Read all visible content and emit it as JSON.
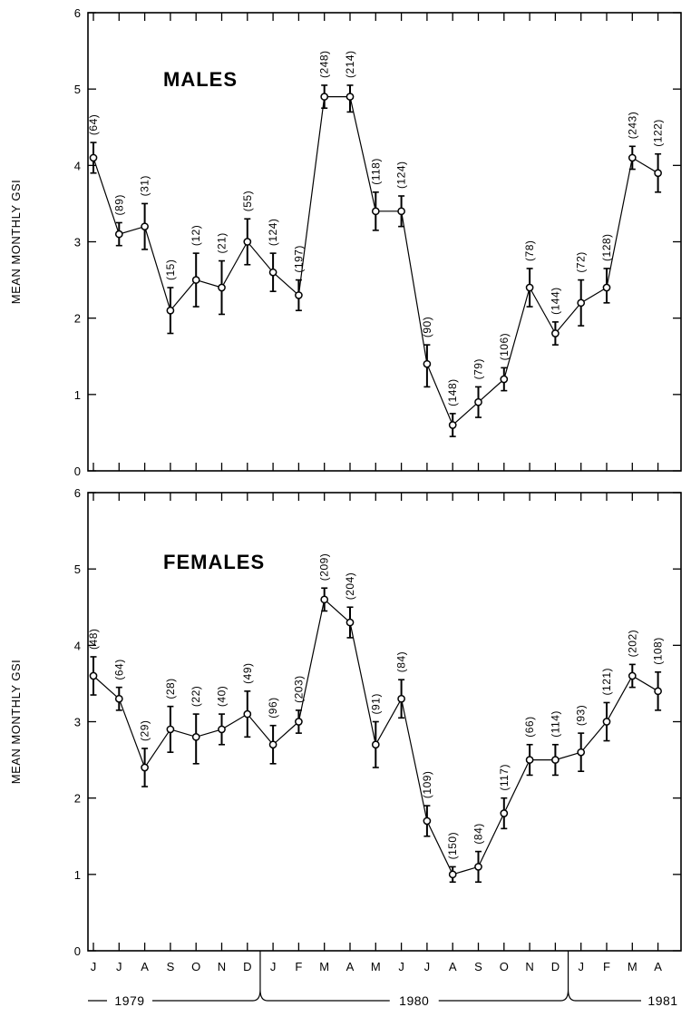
{
  "chart_data": [
    {
      "type": "line",
      "title": "MALES",
      "ylabel": "MEAN MONTHLY GSI",
      "xlabel": "",
      "ylim": [
        0,
        6
      ],
      "yticks": [
        "0",
        "1",
        "2",
        "3",
        "4",
        "5",
        "6"
      ],
      "grid": false,
      "categories": [
        "J",
        "J",
        "A",
        "S",
        "O",
        "N",
        "D",
        "J",
        "F",
        "M",
        "A",
        "M",
        "J",
        "J",
        "A",
        "S",
        "O",
        "N",
        "D",
        "J",
        "F",
        "M",
        "A"
      ],
      "values": [
        4.1,
        3.1,
        3.2,
        2.1,
        2.5,
        2.4,
        3.0,
        2.6,
        2.3,
        4.9,
        4.9,
        3.4,
        3.4,
        1.4,
        0.6,
        0.9,
        1.2,
        2.4,
        1.8,
        2.2,
        2.4,
        4.1,
        3.9
      ],
      "err_low": [
        3.9,
        2.95,
        2.9,
        1.8,
        2.15,
        2.05,
        2.7,
        2.35,
        2.1,
        4.75,
        4.7,
        3.15,
        3.2,
        1.1,
        0.45,
        0.7,
        1.05,
        2.15,
        1.65,
        1.9,
        2.2,
        3.95,
        3.65
      ],
      "err_high": [
        4.3,
        3.25,
        3.5,
        2.4,
        2.85,
        2.75,
        3.3,
        2.85,
        2.5,
        5.05,
        5.05,
        3.65,
        3.6,
        1.65,
        0.75,
        1.1,
        1.35,
        2.65,
        1.95,
        2.5,
        2.65,
        4.25,
        4.15
      ],
      "n_labels": [
        "(64)",
        "(89)",
        "(31)",
        "(15)",
        "(12)",
        "(21)",
        "(55)",
        "(124)",
        "(197)",
        "(248)",
        "(214)",
        "(118)",
        "(124)",
        "(90)",
        "(148)",
        "(79)",
        "(106)",
        "(78)",
        "(144)",
        "(72)",
        "(128)",
        "(243)",
        "(122)"
      ]
    },
    {
      "type": "line",
      "title": "FEMALES",
      "ylabel": "MEAN MONTHLY GSI",
      "xlabel": "",
      "ylim": [
        0,
        6
      ],
      "yticks": [
        "0",
        "1",
        "2",
        "3",
        "4",
        "5",
        "6"
      ],
      "grid": false,
      "categories": [
        "J",
        "J",
        "A",
        "S",
        "O",
        "N",
        "D",
        "J",
        "F",
        "M",
        "A",
        "M",
        "J",
        "J",
        "A",
        "S",
        "O",
        "N",
        "D",
        "J",
        "F",
        "M",
        "A"
      ],
      "values": [
        3.6,
        3.3,
        2.4,
        2.9,
        2.8,
        2.9,
        3.1,
        2.7,
        3.0,
        4.6,
        4.3,
        2.7,
        3.3,
        1.7,
        1.0,
        1.1,
        1.8,
        2.5,
        2.5,
        2.6,
        3.0,
        3.6,
        3.4
      ],
      "err_low": [
        3.35,
        3.15,
        2.15,
        2.6,
        2.45,
        2.7,
        2.8,
        2.45,
        2.85,
        4.45,
        4.1,
        2.4,
        3.05,
        1.5,
        0.9,
        0.9,
        1.6,
        2.3,
        2.3,
        2.35,
        2.75,
        3.45,
        3.15
      ],
      "err_high": [
        3.85,
        3.45,
        2.65,
        3.2,
        3.1,
        3.1,
        3.4,
        2.95,
        3.15,
        4.75,
        4.5,
        3.0,
        3.55,
        1.9,
        1.1,
        1.3,
        2.0,
        2.7,
        2.7,
        2.85,
        3.25,
        3.75,
        3.65
      ],
      "n_labels": [
        "(48)",
        "(64)",
        "(29)",
        "(28)",
        "(22)",
        "(40)",
        "(49)",
        "(96)",
        "(203)",
        "(209)",
        "(204)",
        "(91)",
        "(84)",
        "(109)",
        "(150)",
        "(84)",
        "(117)",
        "(66)",
        "(114)",
        "(93)",
        "(121)",
        "(202)",
        "(108)"
      ]
    }
  ],
  "years": [
    "1979",
    "1980",
    "1981"
  ]
}
